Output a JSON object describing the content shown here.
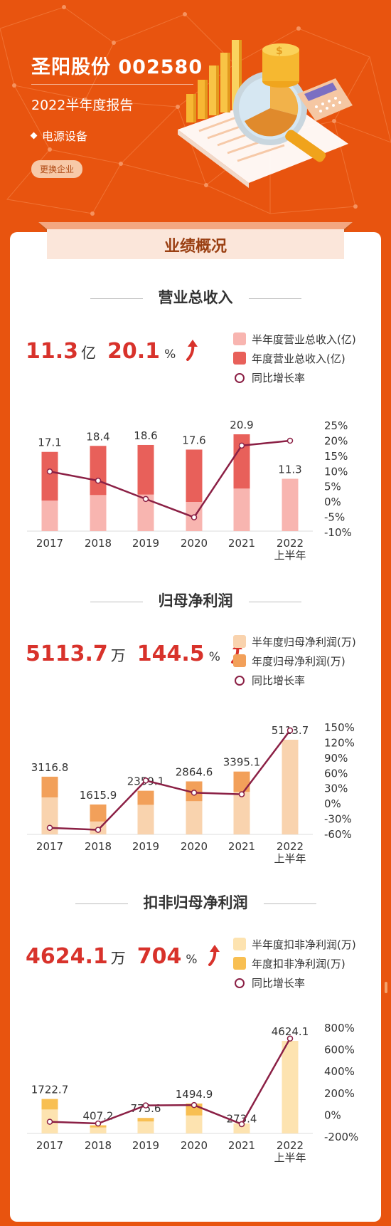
{
  "header": {
    "company": "圣阳股份 002580",
    "report": "2022半年度报告",
    "industry": "电源设备",
    "switch_label": "更换企业"
  },
  "ribbon_title": "业绩概况",
  "sections": [
    {
      "title": "营业总收入",
      "kpi_value": "11.3",
      "kpi_unit": "亿",
      "kpi_growth": "20.1",
      "kpi_pct": "%",
      "legend": [
        "半年度营业总收入(亿)",
        "年度营业总收入(亿)",
        "同比增长率"
      ]
    },
    {
      "title": "归母净利润",
      "kpi_value": "5113.7",
      "kpi_unit": "万",
      "kpi_growth": "144.5",
      "kpi_pct": "%",
      "legend": [
        "半年度归母净利润(万)",
        "年度归母净利润(万)",
        "同比增长率"
      ]
    },
    {
      "title": "扣非归母净利润",
      "kpi_value": "4624.1",
      "kpi_unit": "万",
      "kpi_growth": "704",
      "kpi_pct": "%",
      "legend": [
        "半年度扣非净利润(万)",
        "年度扣非净利润(万)",
        "同比增长率"
      ]
    }
  ],
  "colors": {
    "background": "#e8540f",
    "kpi_red": "#d8322b",
    "line": "#8b2045",
    "revenue_half": "#f8b5b0",
    "revenue_annual": "#e8605a",
    "profit_half": "#f9d3ae",
    "profit_annual": "#f2a05a",
    "deducted_half": "#fde3b0",
    "deducted_annual": "#f8bf52"
  },
  "chart_data": [
    {
      "type": "bar",
      "title": "营业总收入",
      "categories": [
        "2017",
        "2018",
        "2019",
        "2020",
        "2021",
        "2022\n上半年"
      ],
      "series": [
        {
          "name": "半年度营业总收入(亿)",
          "values": [
            6.6,
            7.8,
            7.9,
            6.3,
            9.2,
            11.3
          ]
        },
        {
          "name": "年度营业总收入(亿)",
          "values": [
            17.1,
            18.4,
            18.6,
            17.6,
            20.9,
            null
          ]
        },
        {
          "name": "同比增长率",
          "axis": "right",
          "values": [
            10,
            7,
            1,
            -5,
            18.5,
            20.1
          ]
        }
      ],
      "data_labels": [
        "17.1",
        "18.4",
        "18.6",
        "17.6",
        "20.9",
        "11.3"
      ],
      "y_right_ticks": [
        "25%",
        "20%",
        "15%",
        "10%",
        "5%",
        "0%",
        "-5%",
        "-10%"
      ],
      "y_right_range": [
        -10,
        25
      ],
      "grid": false
    },
    {
      "type": "bar",
      "title": "归母净利润",
      "categories": [
        "2017",
        "2018",
        "2019",
        "2020",
        "2021",
        "2022\n上半年"
      ],
      "series": [
        {
          "name": "半年度归母净利润(万)",
          "values": [
            2000,
            700,
            1600,
            1800,
            2300,
            5113.7
          ]
        },
        {
          "name": "年度归母净利润(万)",
          "values": [
            3116.8,
            1615.9,
            2359.1,
            2864.6,
            3395.1,
            null
          ]
        },
        {
          "name": "同比增长率",
          "axis": "right",
          "values": [
            -47,
            -51,
            46,
            22,
            19,
            144.5
          ]
        }
      ],
      "data_labels": [
        "3116.8",
        "1615.9",
        "2359.1",
        "2864.6",
        "3395.1",
        "5113.7"
      ],
      "y_right_ticks": [
        "150%",
        "120%",
        "90%",
        "60%",
        "30%",
        "0%",
        "-30%",
        "-60%"
      ],
      "y_right_range": [
        -60,
        150
      ],
      "grid": false
    },
    {
      "type": "bar",
      "title": "扣非归母净利润",
      "categories": [
        "2017",
        "2018",
        "2019",
        "2020",
        "2021",
        "2022\n上半年"
      ],
      "series": [
        {
          "name": "半年度扣非净利润(万)",
          "values": [
            1200,
            300,
            600,
            900,
            500,
            4624.1
          ]
        },
        {
          "name": "年度扣非净利润(万)",
          "values": [
            1722.7,
            407.2,
            775.6,
            1494.9,
            273.4,
            null
          ]
        },
        {
          "name": "同比增长率",
          "axis": "right",
          "values": [
            -60,
            -76,
            90,
            93,
            -82,
            704
          ]
        }
      ],
      "data_labels": [
        "1722.7",
        "407.2",
        "775.6",
        "1494.9",
        "273.4",
        "4624.1"
      ],
      "y_right_ticks": [
        "800%",
        "600%",
        "400%",
        "200%",
        "0%",
        "-200%"
      ],
      "y_right_range": [
        -200,
        800
      ],
      "grid": false
    }
  ]
}
